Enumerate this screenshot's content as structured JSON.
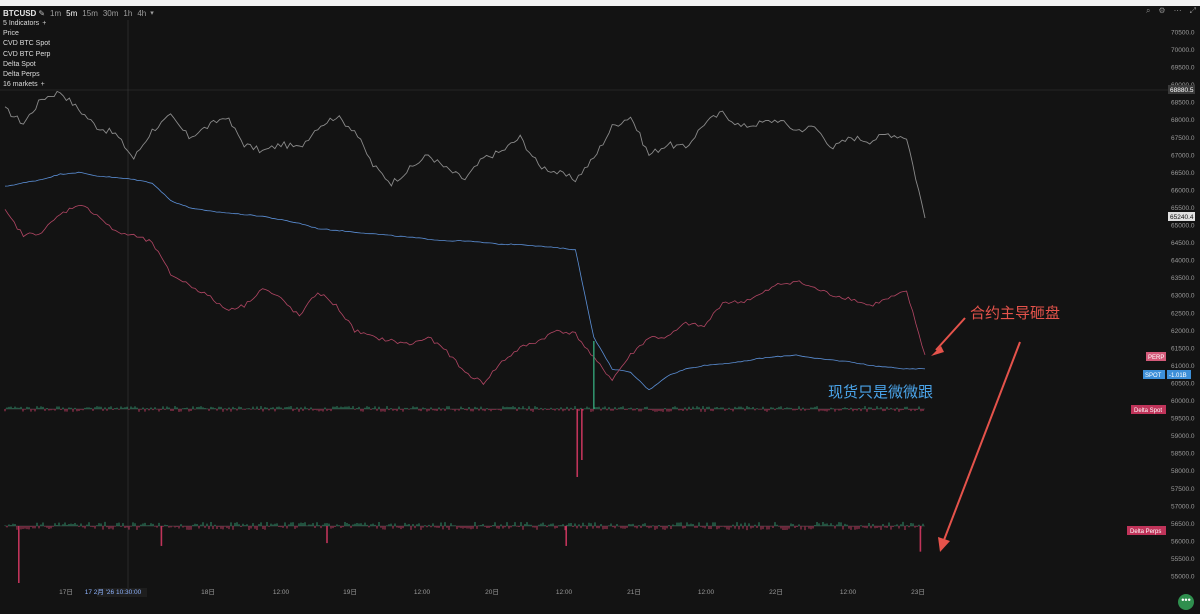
{
  "toolbar": {
    "symbol": "BTCUSD",
    "timeframes": [
      "1m",
      "5m",
      "15m",
      "30m",
      "1h",
      "4h"
    ],
    "active_timeframe": "5m",
    "icons": [
      "pen-icon",
      "chevron-down-icon",
      "search-icon",
      "settings-icon",
      "more-icon",
      "maximize-icon"
    ]
  },
  "legend": {
    "indicators_label": "5 Indicators",
    "items": [
      "Price",
      "CVD BTC Spot",
      "CVD BTC Perp",
      "Delta Spot",
      "Delta Perps"
    ],
    "markets_label": "16 markets"
  },
  "annotations": {
    "perp_note": "合约主导砸盘",
    "spot_note": "现货只是微微跟",
    "colors": {
      "perp_note": "#e5534b",
      "spot_note": "#4aa3e8",
      "arrow": "#e5534b"
    }
  },
  "chart_data": {
    "type": "line",
    "y_axis": {
      "ticks": [
        "70500.0",
        "70000.0",
        "69500.0",
        "69000.0",
        "68500.0",
        "68000.0",
        "67500.0",
        "67000.0",
        "66500.0",
        "66000.0",
        "65500.0",
        "65000.0",
        "64500.0",
        "64000.0",
        "63500.0",
        "63000.0",
        "62500.0",
        "62000.0",
        "61500.0",
        "61000.0",
        "60500.0",
        "60000.0",
        "59500.0",
        "59000.0",
        "58500.0",
        "58000.0",
        "57500.0",
        "57000.0",
        "56500.0",
        "56000.0",
        "55500.0",
        "55000.0"
      ],
      "range": [
        55000,
        70500
      ]
    },
    "x_axis": {
      "ticks": [
        "17日",
        "17 2月 '26  10:30:00",
        "18日",
        "12:00",
        "19日",
        "12:00",
        "20日",
        "12:00",
        "21日",
        "12:00",
        "22日",
        "12:00",
        "23日"
      ],
      "crosshair_label": "17 2月 '26  10:30:00"
    },
    "price_labels": {
      "last_high": "68880.5",
      "current": "65240.4",
      "perp_tag": "PERP",
      "spot_tag": "SPOT",
      "spot_value": "-1.01B",
      "delta_spot_tag": "Delta Spot",
      "delta_perps_tag": "Delta Perps"
    },
    "series": [
      {
        "name": "Price",
        "color": "#8a8a8a",
        "x": [
          0,
          0.02,
          0.04,
          0.06,
          0.08,
          0.1,
          0.12,
          0.14,
          0.16,
          0.18,
          0.2,
          0.22,
          0.24,
          0.26,
          0.28,
          0.3,
          0.32,
          0.34,
          0.36,
          0.38,
          0.4,
          0.42,
          0.44,
          0.46,
          0.48,
          0.5,
          0.52,
          0.54,
          0.56,
          0.58,
          0.6,
          0.62,
          0.64,
          0.66,
          0.68,
          0.7,
          0.72,
          0.74,
          0.76,
          0.78,
          0.8,
          0.82,
          0.84,
          0.86,
          0.88,
          0.9,
          0.92,
          0.94,
          0.96,
          0.98,
          1.0
        ],
        "y": [
          68300,
          67900,
          68600,
          68800,
          68300,
          67800,
          67600,
          66900,
          67700,
          68100,
          67500,
          67800,
          68100,
          67300,
          67100,
          67300,
          67200,
          67800,
          68100,
          67700,
          66700,
          66200,
          66600,
          67000,
          66600,
          66300,
          66900,
          67100,
          67500,
          66700,
          66500,
          66300,
          66900,
          67800,
          68100,
          67000,
          67300,
          67200,
          67900,
          68200,
          67800,
          67900,
          68000,
          67700,
          67800,
          67200,
          67500,
          67400,
          67600,
          67500,
          65200
        ]
      },
      {
        "name": "CVD BTC Spot",
        "color": "#5b8fd6",
        "x": [
          0,
          0.02,
          0.04,
          0.06,
          0.08,
          0.1,
          0.12,
          0.14,
          0.16,
          0.18,
          0.2,
          0.22,
          0.24,
          0.26,
          0.28,
          0.3,
          0.32,
          0.34,
          0.36,
          0.38,
          0.4,
          0.42,
          0.44,
          0.46,
          0.48,
          0.5,
          0.52,
          0.54,
          0.56,
          0.58,
          0.6,
          0.62,
          0.64,
          0.66,
          0.68,
          0.7,
          0.72,
          0.74,
          0.76,
          0.78,
          0.8,
          0.82,
          0.84,
          0.86,
          0.88,
          0.9,
          0.92,
          0.94,
          0.96,
          0.98,
          1.0
        ],
        "y": [
          66100,
          66200,
          66300,
          66450,
          66500,
          66400,
          66350,
          66300,
          66200,
          65700,
          65500,
          65400,
          65350,
          65300,
          65250,
          65150,
          65050,
          64900,
          64850,
          64800,
          64750,
          64700,
          64650,
          64600,
          64550,
          64550,
          64500,
          64450,
          64450,
          64400,
          64350,
          64300,
          61800,
          60900,
          60800,
          60300,
          60700,
          60900,
          61000,
          61050,
          61100,
          61200,
          61250,
          61300,
          61200,
          61150,
          61100,
          61000,
          60950,
          60900,
          60900
        ]
      },
      {
        "name": "CVD BTC Perp",
        "color": "#b24664",
        "x": [
          0,
          0.02,
          0.04,
          0.06,
          0.08,
          0.1,
          0.12,
          0.14,
          0.16,
          0.18,
          0.2,
          0.22,
          0.24,
          0.26,
          0.28,
          0.3,
          0.32,
          0.34,
          0.36,
          0.38,
          0.4,
          0.42,
          0.44,
          0.46,
          0.48,
          0.5,
          0.52,
          0.54,
          0.56,
          0.58,
          0.6,
          0.62,
          0.64,
          0.66,
          0.68,
          0.7,
          0.72,
          0.74,
          0.76,
          0.78,
          0.8,
          0.82,
          0.84,
          0.86,
          0.88,
          0.9,
          0.92,
          0.94,
          0.96,
          0.98,
          1.0
        ],
        "y": [
          65400,
          64700,
          64800,
          65300,
          65600,
          65300,
          64800,
          64700,
          64500,
          63600,
          63300,
          63000,
          62600,
          62700,
          63200,
          62900,
          62400,
          63100,
          62700,
          62000,
          61800,
          61700,
          61600,
          61800,
          61400,
          60800,
          60500,
          61100,
          61500,
          61700,
          62000,
          61900,
          61200,
          60600,
          61300,
          61800,
          61800,
          62200,
          62100,
          62800,
          62800,
          63000,
          63300,
          63400,
          63200,
          63000,
          62900,
          62700,
          62900,
          63100,
          61300
        ]
      },
      {
        "name": "Delta Spot",
        "color": "#c0345a",
        "spikes": [
          {
            "x": 0.622,
            "value": -1.0
          },
          {
            "x": 0.627,
            "value": -0.75
          },
          {
            "x": 0.64,
            "value": 1.0
          }
        ]
      },
      {
        "name": "Delta Perps",
        "color": "#c0345a",
        "spikes": [
          {
            "x": 0.015,
            "value": -1.0
          },
          {
            "x": 0.17,
            "value": -0.35
          },
          {
            "x": 0.35,
            "value": -0.3
          },
          {
            "x": 0.61,
            "value": -0.35
          },
          {
            "x": 0.995,
            "value": -0.45
          }
        ]
      }
    ]
  }
}
